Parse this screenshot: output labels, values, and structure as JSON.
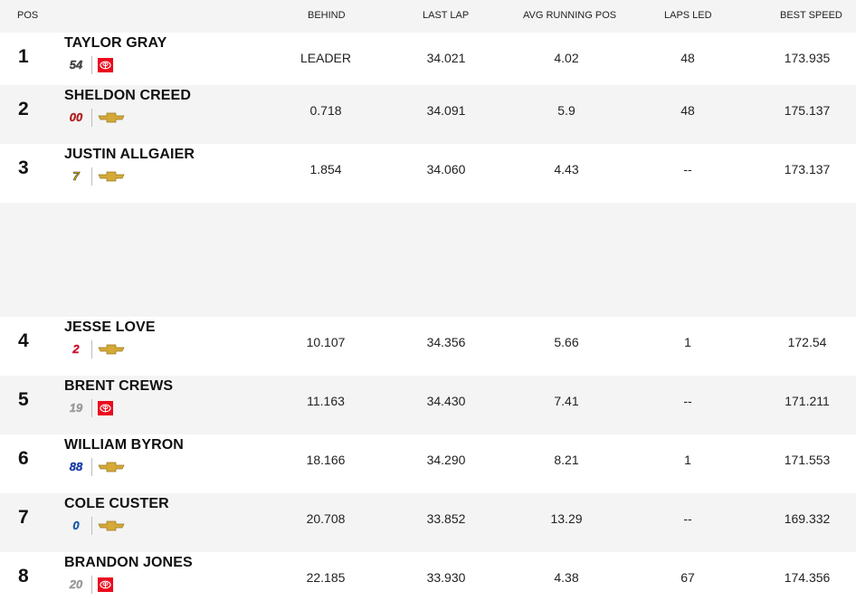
{
  "columns": {
    "pos": "POS",
    "behind": "BEHIND",
    "last_lap": "LAST LAP",
    "avg_running_pos": "AVG RUNNING POS",
    "laps_led": "LAPS LED",
    "best_speed": "BEST SPEED"
  },
  "rows": [
    {
      "pos": "1",
      "driver": "TAYLOR GRAY",
      "car_number": "54",
      "make": "toyota-icon",
      "behind": "LEADER",
      "last_lap": "34.021",
      "avg_running_pos": "4.02",
      "laps_led": "48",
      "best_speed": "173.935"
    },
    {
      "pos": "2",
      "driver": "SHELDON CREED",
      "car_number": "00",
      "make": "chevrolet-icon",
      "behind": "0.718",
      "last_lap": "34.091",
      "avg_running_pos": "5.9",
      "laps_led": "48",
      "best_speed": "175.137"
    },
    {
      "pos": "3",
      "driver": "JUSTIN ALLGAIER",
      "car_number": "7",
      "make": "chevrolet-icon",
      "behind": "1.854",
      "last_lap": "34.060",
      "avg_running_pos": "4.43",
      "laps_led": "--",
      "best_speed": "173.137"
    },
    {
      "pos": "4",
      "driver": "JESSE LOVE",
      "car_number": "2",
      "make": "chevrolet-icon",
      "behind": "10.107",
      "last_lap": "34.356",
      "avg_running_pos": "5.66",
      "laps_led": "1",
      "best_speed": "172.54"
    },
    {
      "pos": "5",
      "driver": "BRENT CREWS",
      "car_number": "19",
      "make": "toyota-icon",
      "behind": "11.163",
      "last_lap": "34.430",
      "avg_running_pos": "7.41",
      "laps_led": "--",
      "best_speed": "171.211"
    },
    {
      "pos": "6",
      "driver": "WILLIAM BYRON",
      "car_number": "88",
      "make": "chevrolet-icon",
      "behind": "18.166",
      "last_lap": "34.290",
      "avg_running_pos": "8.21",
      "laps_led": "1",
      "best_speed": "171.553"
    },
    {
      "pos": "7",
      "driver": "COLE CUSTER",
      "car_number": "0",
      "make": "chevrolet-icon",
      "behind": "20.708",
      "last_lap": "33.852",
      "avg_running_pos": "13.29",
      "laps_led": "--",
      "best_speed": "169.332"
    },
    {
      "pos": "8",
      "driver": "BRANDON JONES",
      "car_number": "20",
      "make": "toyota-icon",
      "behind": "22.185",
      "last_lap": "33.930",
      "avg_running_pos": "4.38",
      "laps_led": "67",
      "best_speed": "174.356"
    }
  ],
  "colors": {
    "toyota_red": "#eb0a1e",
    "chevrolet_gold": "#d4a937",
    "row_alt_bg": "#f4f4f4"
  }
}
